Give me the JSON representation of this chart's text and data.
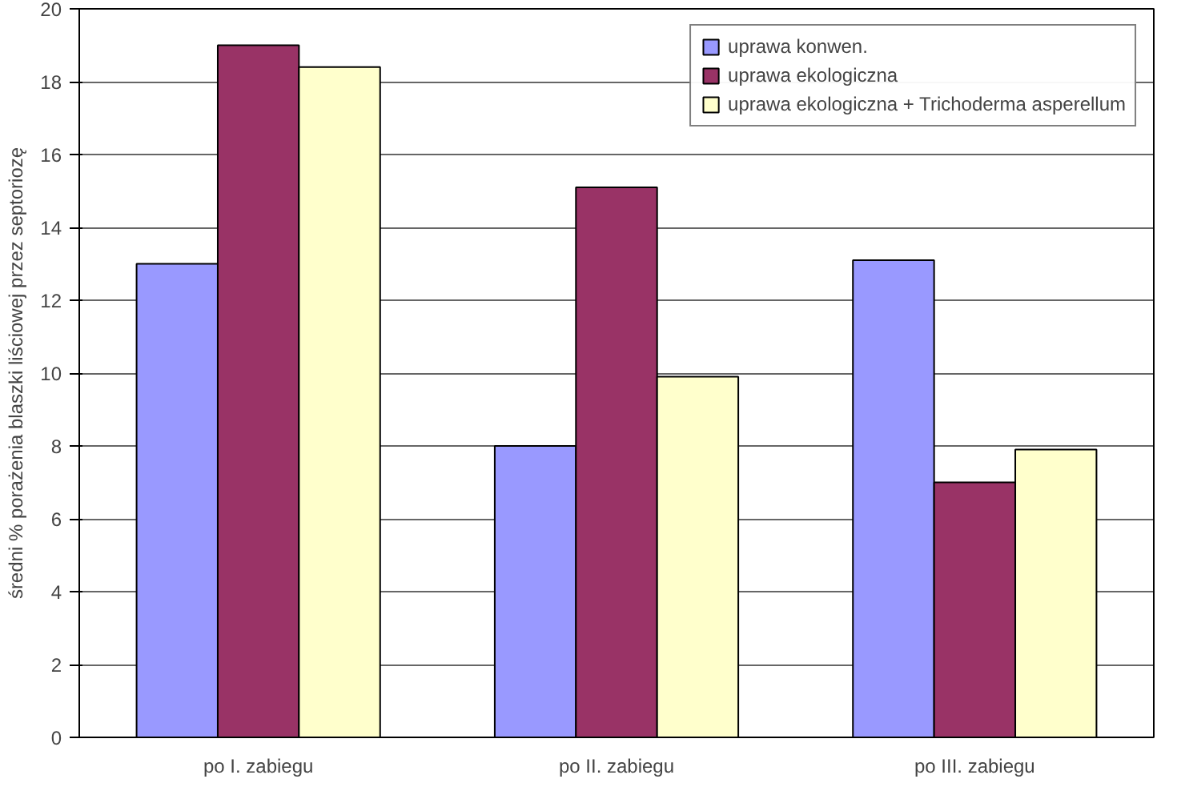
{
  "chart_data": {
    "type": "bar",
    "ylabel": "średni % porażenia blaszki liściowej przez septoriozę",
    "categories": [
      "po I. zabiegu",
      "po II. zabiegu",
      "po III. zabiegu"
    ],
    "series": [
      {
        "name": "uprawa konwen.",
        "color": "#9999ff",
        "values": [
          13,
          8,
          13.1
        ]
      },
      {
        "name": "uprawa ekologiczna",
        "color": "#993366",
        "values": [
          19,
          15.1,
          7
        ]
      },
      {
        "name": "uprawa ekologiczna + Trichoderma asperellum",
        "color": "#ffffcc",
        "values": [
          18.4,
          9.9,
          7.9
        ]
      }
    ],
    "ylim": [
      0,
      20
    ],
    "yticks": [
      0,
      2,
      4,
      6,
      8,
      10,
      12,
      14,
      16,
      18,
      20
    ],
    "grid": "y",
    "legend": "top right"
  }
}
